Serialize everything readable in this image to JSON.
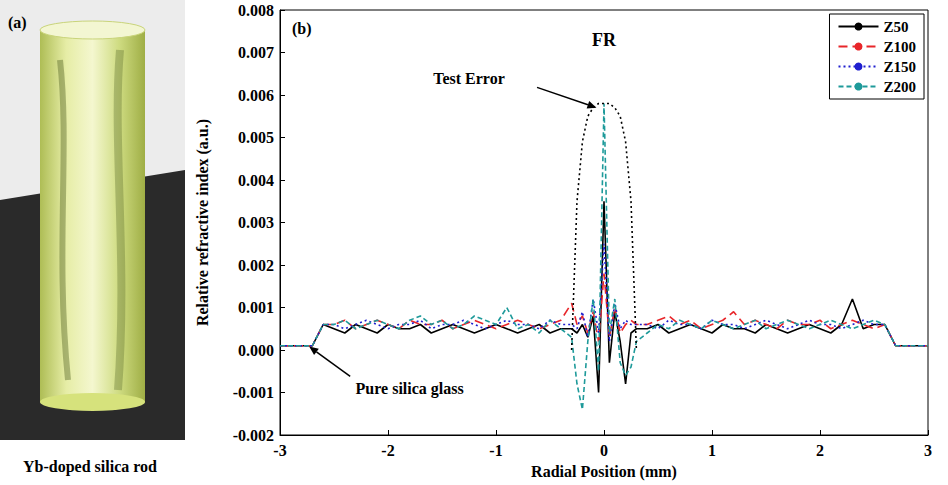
{
  "figure_a": {
    "label": "(a)",
    "caption": "Yb-doped silica rod"
  },
  "chart_data": {
    "type": "line",
    "label": "(b)",
    "title": "FR",
    "xlabel": "Radial Position (mm)",
    "ylabel": "Relative refractive index (a.u.)",
    "xlim": [
      -3,
      3
    ],
    "xticks": [
      -3,
      -2,
      -1,
      0,
      1,
      2,
      3
    ],
    "ylim": [
      -0.002,
      0.008
    ],
    "yticks": [
      -0.002,
      -0.001,
      {
        "value": 0,
        "label": "0.000"
      },
      0.001,
      0.002,
      0.003,
      0.004,
      0.005,
      0.006,
      0.007,
      0.008
    ],
    "grid": false,
    "legend": "upper right",
    "annotations": [
      {
        "text": "Test Error"
      },
      {
        "text": "Pure silica glass"
      }
    ],
    "x": [
      -3.0,
      -2.9,
      -2.8,
      -2.7,
      -2.6,
      -2.5,
      -2.4,
      -2.3,
      -2.2,
      -2.1,
      -2.0,
      -1.9,
      -1.8,
      -1.7,
      -1.6,
      -1.5,
      -1.4,
      -1.3,
      -1.2,
      -1.1,
      -1.0,
      -0.9,
      -0.8,
      -0.7,
      -0.6,
      -0.5,
      -0.4,
      -0.3,
      -0.25,
      -0.2,
      -0.15,
      -0.1,
      -0.05,
      0,
      0.05,
      0.1,
      0.15,
      0.2,
      0.25,
      0.3,
      0.4,
      0.5,
      0.6,
      0.7,
      0.8,
      0.9,
      1.0,
      1.1,
      1.2,
      1.3,
      1.4,
      1.5,
      1.6,
      1.7,
      1.8,
      1.9,
      2.0,
      2.1,
      2.2,
      2.3,
      2.4,
      2.5,
      2.6,
      2.7,
      2.8,
      2.9,
      3.0
    ],
    "series": [
      {
        "name": "Z50",
        "color": "#000000",
        "line_style": "solid",
        "values": [
          0.0001,
          0.0001,
          0.0001,
          0.0001,
          0.0006,
          0.0005,
          0.0004,
          0.0006,
          0.0005,
          0.0004,
          0.0006,
          0.0005,
          0.0005,
          0.0006,
          0.0004,
          0.0005,
          0.0006,
          0.0005,
          0.0004,
          0.0005,
          0.0006,
          0.0005,
          0.0004,
          0.0005,
          0.0006,
          0.0004,
          0.0005,
          0.0005,
          0.0004,
          0.0006,
          0.0003,
          0.0008,
          -0.001,
          0.0035,
          -0.0003,
          0.0009,
          0.0002,
          -0.0008,
          0.0004,
          0.0005,
          0.0005,
          0.0006,
          0.0004,
          0.0005,
          0.0006,
          0.0005,
          0.0004,
          0.0006,
          0.0005,
          0.0005,
          0.0004,
          0.0006,
          0.0005,
          0.0004,
          0.0005,
          0.0006,
          0.0005,
          0.0004,
          0.0006,
          0.0012,
          0.0005,
          0.0006,
          0.0006,
          0.0001,
          0.0001,
          0.0001,
          0.0001
        ]
      },
      {
        "name": "Z100",
        "color": "#e8262a",
        "line_style": "dashed",
        "values": [
          0.0001,
          0.0001,
          0.0001,
          0.0001,
          0.0006,
          0.0006,
          0.0007,
          0.0005,
          0.0006,
          0.0007,
          0.0006,
          0.0005,
          0.0007,
          0.0006,
          0.0006,
          0.0007,
          0.0005,
          0.0006,
          0.0007,
          0.0006,
          0.0005,
          0.0006,
          0.0007,
          0.0006,
          0.0005,
          0.0006,
          0.0007,
          0.0011,
          0.0006,
          0.0008,
          0.0004,
          0.0009,
          0.0002,
          0.0018,
          0.0003,
          0.001,
          0.0004,
          0.0006,
          0.0007,
          0.0006,
          0.0006,
          0.0007,
          0.0008,
          0.0006,
          0.0007,
          0.0005,
          0.0006,
          0.0007,
          0.0009,
          0.0006,
          0.0007,
          0.0006,
          0.0005,
          0.0007,
          0.0006,
          0.0006,
          0.0007,
          0.0005,
          0.0006,
          0.0007,
          0.0006,
          0.0005,
          0.0006,
          0.0001,
          0.0001,
          0.0001,
          0.0001
        ]
      },
      {
        "name": "Z150",
        "color": "#1f1fcf",
        "line_style": "dotted",
        "values": [
          0.0001,
          0.0001,
          0.0001,
          0.0001,
          0.0006,
          0.0006,
          0.0005,
          0.0006,
          0.0007,
          0.0006,
          0.0005,
          0.0006,
          0.0006,
          0.0007,
          0.0005,
          0.0006,
          0.0006,
          0.0007,
          0.0006,
          0.0005,
          0.0006,
          0.0007,
          0.0006,
          0.0006,
          0.0005,
          0.0007,
          0.0006,
          0.0006,
          0.0005,
          0.0009,
          0.0003,
          0.0012,
          0.0004,
          0.0025,
          0.0002,
          0.0011,
          0.0005,
          0.0007,
          0.0006,
          0.0006,
          0.0006,
          0.0005,
          0.0007,
          0.0006,
          0.0006,
          0.0005,
          0.0007,
          0.0006,
          0.0006,
          0.0005,
          0.0006,
          0.0007,
          0.0006,
          0.0005,
          0.0006,
          0.0007,
          0.0006,
          0.0006,
          0.0005,
          0.0006,
          0.0007,
          0.0006,
          0.0006,
          0.0001,
          0.0001,
          0.0001,
          0.0001
        ]
      },
      {
        "name": "Z200",
        "color": "#1e9a9a",
        "line_style": "short_dashed",
        "values": [
          0.0001,
          0.0001,
          0.0001,
          0.0001,
          0.0006,
          0.0006,
          0.0007,
          0.0005,
          0.0006,
          0.0007,
          0.0006,
          0.0005,
          0.0007,
          0.0008,
          0.0006,
          0.0007,
          0.0005,
          0.0006,
          0.0008,
          0.0007,
          0.0006,
          0.001,
          0.0005,
          0.0006,
          0.0004,
          0.0007,
          0.0005,
          0.0003,
          -0.0008,
          -0.0014,
          0.0002,
          0.0012,
          -0.0005,
          0.0058,
          0.0004,
          0.0012,
          -0.0003,
          -0.0006,
          -0.0004,
          0.0002,
          0.0004,
          0.0006,
          0.0005,
          0.0007,
          0.0006,
          0.0005,
          0.0007,
          0.0006,
          0.0005,
          0.0006,
          0.0007,
          0.0005,
          0.0006,
          0.0007,
          0.0006,
          0.0005,
          0.0006,
          0.0007,
          0.0006,
          0.0005,
          0.0006,
          0.0007,
          0.0006,
          0.0001,
          0.0001,
          0.0001,
          0.0001
        ]
      },
      {
        "color": "#000000",
        "line_style": "dotted",
        "values": [
          null,
          null,
          null,
          null,
          null,
          null,
          null,
          null,
          null,
          null,
          null,
          null,
          null,
          null,
          null,
          null,
          null,
          null,
          null,
          null,
          null,
          null,
          null,
          null,
          null,
          null,
          null,
          0,
          0.0035,
          0.0049,
          0.0055,
          0.0057,
          0.0058,
          0.0058,
          0.0058,
          0.0057,
          0.0055,
          0.0049,
          0.0035,
          0,
          null,
          null,
          null,
          null,
          null,
          null,
          null,
          null,
          null,
          null,
          null,
          null,
          null,
          null,
          null,
          null,
          null,
          null,
          null,
          null,
          null,
          null,
          null,
          null,
          null,
          null,
          null
        ]
      }
    ]
  }
}
